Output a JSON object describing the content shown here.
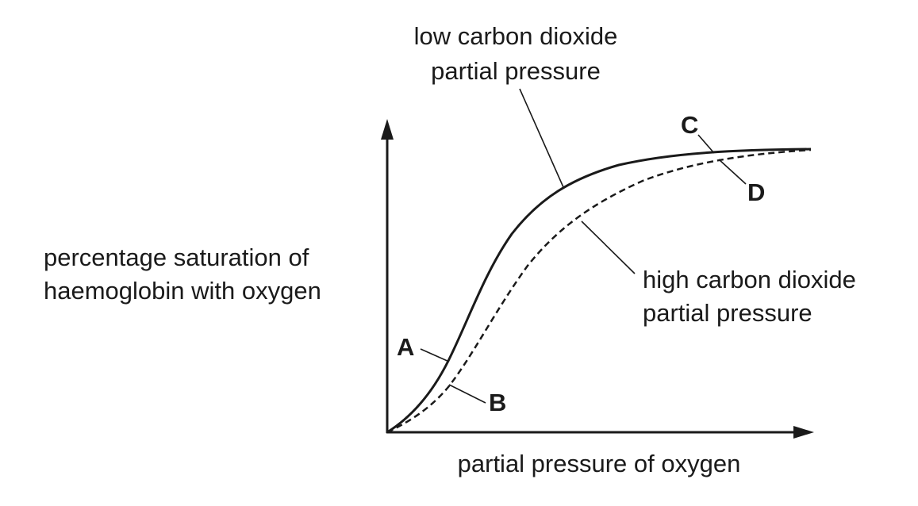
{
  "y_axis": {
    "label_lines": [
      "percentage saturation of",
      "haemoglobin with oxygen"
    ]
  },
  "x_axis": {
    "label": "partial pressure of oxygen"
  },
  "curves": [
    {
      "label_lines": [
        "low carbon dioxide",
        "partial pressure"
      ]
    },
    {
      "label_lines": [
        "high carbon dioxide",
        "partial pressure"
      ]
    }
  ],
  "points": [
    {
      "label": "A"
    },
    {
      "label": "B"
    },
    {
      "label": "C"
    },
    {
      "label": "D"
    }
  ]
}
